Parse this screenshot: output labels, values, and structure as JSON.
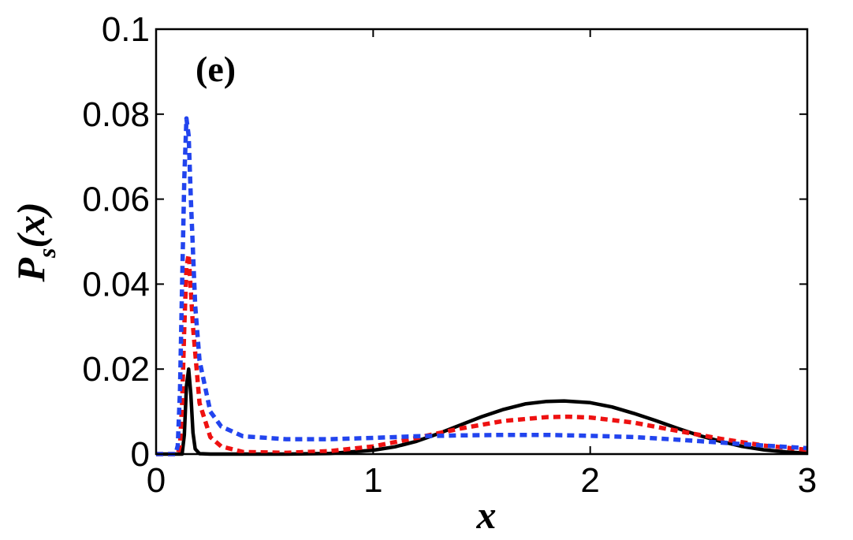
{
  "chart_data": {
    "type": "line",
    "panel_label": "(e)",
    "xlabel": "x",
    "ylabel_main": "P",
    "ylabel_sub": "s",
    "ylabel_arg": "(x)",
    "xlim": [
      0,
      3
    ],
    "ylim": [
      0,
      0.1
    ],
    "xticks": [
      0,
      1,
      2,
      3
    ],
    "xtick_labels": [
      "0",
      "1",
      "2",
      "3"
    ],
    "yticks": [
      0,
      0.02,
      0.04,
      0.06,
      0.08,
      0.1
    ],
    "ytick_labels": [
      "0",
      "0.02",
      "0.04",
      "0.06",
      "0.08",
      "0.1"
    ],
    "grid": false,
    "series": [
      {
        "color": "#000000",
        "dash": "solid",
        "x": [
          0,
          0.1,
          0.12,
          0.13,
          0.14,
          0.15,
          0.16,
          0.17,
          0.18,
          0.2,
          0.25,
          0.4,
          0.6,
          0.8,
          1.0,
          1.1,
          1.2,
          1.3,
          1.4,
          1.5,
          1.6,
          1.7,
          1.8,
          1.88,
          2.0,
          2.1,
          2.2,
          2.3,
          2.4,
          2.5,
          2.6,
          2.7,
          2.8,
          2.9,
          3.0
        ],
        "y": [
          0,
          0,
          0,
          0.0045,
          0.016,
          0.02,
          0.014,
          0.005,
          0.0012,
          0.0001,
          0,
          0,
          0,
          0.00015,
          0.0009,
          0.0017,
          0.003,
          0.0048,
          0.0068,
          0.0088,
          0.0105,
          0.0118,
          0.0124,
          0.0125,
          0.0121,
          0.0111,
          0.0096,
          0.0079,
          0.0061,
          0.0044,
          0.003,
          0.0018,
          0.001,
          0.0005,
          0.0002
        ]
      },
      {
        "color": "#ee1111",
        "dash": "dotted",
        "x": [
          0,
          0.1,
          0.11,
          0.12,
          0.13,
          0.14,
          0.15,
          0.17,
          0.2,
          0.25,
          0.3,
          0.4,
          0.6,
          0.8,
          1.0,
          1.2,
          1.4,
          1.6,
          1.8,
          1.9,
          2.0,
          2.2,
          2.4,
          2.6,
          2.8,
          3.0
        ],
        "y": [
          0,
          0,
          0.002,
          0.012,
          0.03,
          0.044,
          0.047,
          0.03,
          0.012,
          0.004,
          0.0018,
          0.0005,
          0.0003,
          0.0007,
          0.0018,
          0.0038,
          0.006,
          0.0078,
          0.0087,
          0.0088,
          0.0086,
          0.0074,
          0.0055,
          0.0036,
          0.002,
          0.001
        ]
      },
      {
        "color": "#2244ee",
        "dash": "dotted",
        "x": [
          0,
          0.09,
          0.1,
          0.11,
          0.12,
          0.13,
          0.14,
          0.15,
          0.16,
          0.18,
          0.2,
          0.25,
          0.3,
          0.4,
          0.6,
          0.8,
          1.0,
          1.2,
          1.4,
          1.6,
          1.8,
          2.0,
          2.2,
          2.4,
          2.6,
          2.8,
          3.0
        ],
        "y": [
          0,
          0,
          0.002,
          0.015,
          0.04,
          0.065,
          0.079,
          0.075,
          0.06,
          0.035,
          0.022,
          0.01,
          0.0065,
          0.0042,
          0.0035,
          0.0035,
          0.0038,
          0.0042,
          0.0044,
          0.0045,
          0.0045,
          0.0043,
          0.004,
          0.0034,
          0.0027,
          0.002,
          0.0014
        ]
      }
    ]
  }
}
